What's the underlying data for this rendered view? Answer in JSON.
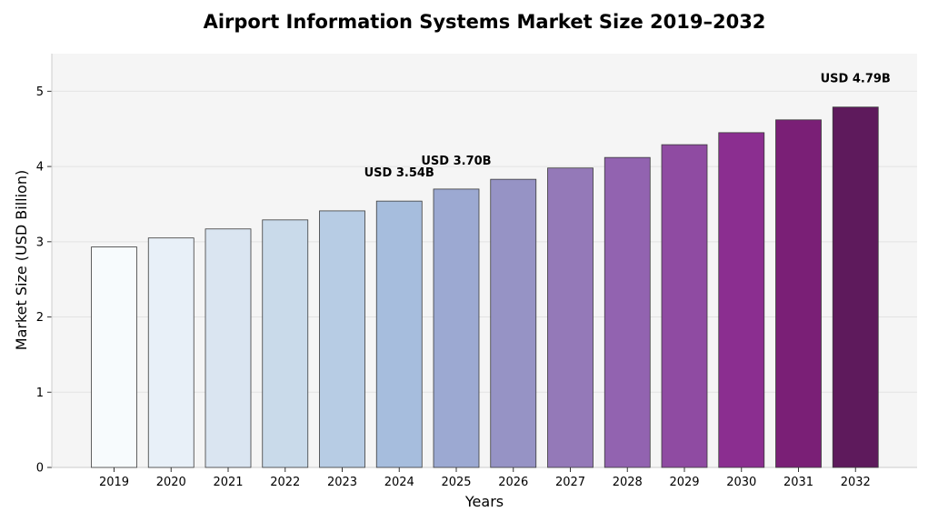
{
  "chart_data": {
    "type": "bar",
    "title": "Airport Information Systems Market Size 2019–2032",
    "xlabel": "Years",
    "ylabel": "Market Size (USD Billion)",
    "categories": [
      "2019",
      "2020",
      "2021",
      "2022",
      "2023",
      "2024",
      "2025",
      "2026",
      "2027",
      "2028",
      "2029",
      "2030",
      "2031",
      "2032"
    ],
    "values": [
      2.93,
      3.05,
      3.17,
      3.29,
      3.41,
      3.54,
      3.7,
      3.83,
      3.98,
      4.12,
      4.29,
      4.45,
      4.62,
      4.79
    ],
    "colors": [
      "#f7fbfd",
      "#e8f0f8",
      "#dae5f1",
      "#c9daea",
      "#b7cce4",
      "#a6bddd",
      "#9ca9d2",
      "#9693c5",
      "#9479b8",
      "#9263b0",
      "#8f4ba2",
      "#8b2e90",
      "#7a1f76",
      "#5e1a5c"
    ],
    "ylim": [
      0,
      5.5
    ],
    "yticks": [
      0,
      1,
      2,
      3,
      4,
      5
    ],
    "grid": true,
    "annotations": [
      {
        "category": "2024",
        "text": "USD 3.54B"
      },
      {
        "category": "2025",
        "text": "USD 3.70B"
      },
      {
        "category": "2032",
        "text": "USD 4.79B"
      }
    ],
    "plot_background": "#f5f5f5",
    "grid_color": "#e3e3e3"
  }
}
